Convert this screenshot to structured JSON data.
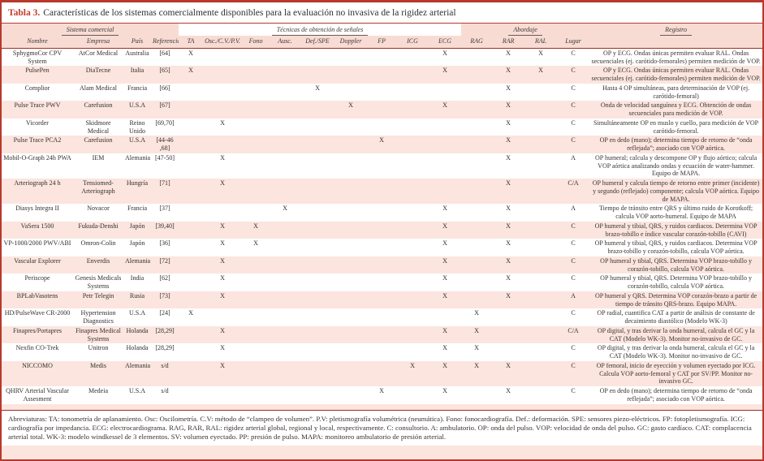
{
  "title": {
    "label": "Tabla 3.",
    "text": "Características de los sistemas comercialmente disponibles para la evaluación no invasiva de la rigidez arterial"
  },
  "table": {
    "groups": [
      {
        "label": "Sistema comercial",
        "cols": 4,
        "highlight": false
      },
      {
        "label": "Técnicas de obtención de señales",
        "cols": 9,
        "highlight": true
      },
      {
        "label": "Abordaje",
        "cols": 4,
        "highlight": false
      },
      {
        "label": "Registro",
        "cols": 1,
        "highlight": false
      }
    ],
    "columns": [
      "Nombre",
      "Empresa",
      "País",
      "Referencia",
      "TA",
      "Osc./C.V./P.V.",
      "Fono",
      "Ausc.",
      "Def./SPE",
      "Doppler",
      "FP",
      "ICG",
      "ECG",
      "RAG",
      "RAR",
      "RAL",
      "Lugar"
    ],
    "mark_keys": [
      "TA",
      "OSC",
      "FONO",
      "AUSC",
      "DEF",
      "DOP",
      "FP",
      "ICG",
      "ECG",
      "RAG",
      "RAR",
      "RAL"
    ],
    "rows": [
      {
        "nombre": "SphygmoCor CPV System",
        "empresa": "AtCor Medical",
        "pais": "Australia",
        "ref": "[64]",
        "marks": [
          "TA",
          "ECG",
          "RAR",
          "RAL"
        ],
        "lugar": "C",
        "registro": "OP y ECG. Ondas únicas permiten evaluar RAL. Ondas secuenciales (ej. carótido-femorales) permiten medición de VOP."
      },
      {
        "nombre": "PulsePen",
        "empresa": "DiaTecne",
        "pais": "Italia",
        "ref": "[65]",
        "marks": [
          "TA",
          "ECG",
          "RAR",
          "RAL"
        ],
        "lugar": "C",
        "registro": "OP y ECG. Ondas únicas permiten evaluar RAL. Ondas secuenciales (ej. carótido-femorales) permiten medición de VOP."
      },
      {
        "nombre": "Complior",
        "empresa": "Alam Medical",
        "pais": "Francia",
        "ref": "[66]",
        "marks": [
          "DEF",
          "RAR"
        ],
        "lugar": "C",
        "registro": "Hasta 4 OP simultáneas, para determinación de VOP (ej. carótido-femoral)"
      },
      {
        "nombre": "Pulse Trace PWV",
        "empresa": "Carefusion",
        "pais": "U.S.A",
        "ref": "[67]",
        "marks": [
          "DOP",
          "ECG",
          "RAR"
        ],
        "lugar": "C",
        "registro": "Onda de velocidad sanguínea y ECG. Obtención de ondas secuenciales para medición de VOP."
      },
      {
        "nombre": "Vicorder",
        "empresa": "Skidmore Medical",
        "pais": "Reino Unido",
        "ref": "[69,70]",
        "marks": [
          "OSC",
          "RAR"
        ],
        "lugar": "C",
        "registro": "Simultáneamente OP en muslo y cuello, para medición de VOP carótido-femoral."
      },
      {
        "nombre": "Pulse Trace PCA2",
        "empresa": "Carefusion",
        "pais": "U.S.A",
        "ref": "[44-46 ,68]",
        "marks": [
          "FP",
          "RAR"
        ],
        "lugar": "C",
        "registro": "OP en dedo (mano); determina tiempo de retorno de “onda reflejada”; asociado con VOP aórtica."
      },
      {
        "nombre": "Mobil-O-Graph 24h PWA",
        "empresa": "IEM",
        "pais": "Alemania",
        "ref": "[47-50]",
        "marks": [
          "OSC",
          "RAR"
        ],
        "lugar": "A",
        "registro": "OP humeral; calcula y descompone OP y flujo aórtico; calcula VOP aórtica analizando ondas y ecuación de water-hammer. Equipo de MAPA."
      },
      {
        "nombre": "Arteriograph 24 h",
        "empresa": "Tensiomed-Arteriograph",
        "pais": "Hungría",
        "ref": "[71]",
        "marks": [
          "OSC",
          "RAR"
        ],
        "lugar": "C/A",
        "registro": "OP humeral y calcula tiempo de retorno entre primer (incidente) y segundo (reflejado) componente; calcula VOP aórtica. Equipo de MAPA."
      },
      {
        "nombre": "Diasys Integra II",
        "empresa": "Novacor",
        "pais": "Francia",
        "ref": "[37]",
        "marks": [
          "AUSC",
          "ECG",
          "RAR"
        ],
        "lugar": "A",
        "registro": "Tiempo de tránsito entre QRS y último ruido de Korotkoff; calcula VOP aorto-humeral. Equipo de MAPA"
      },
      {
        "nombre": "VaSera 1500",
        "empresa": "Fukuda-Denshi",
        "pais": "Japón",
        "ref": "[39,40]",
        "marks": [
          "OSC",
          "FONO",
          "ECG",
          "RAR"
        ],
        "lugar": "C",
        "registro": "OP humeral y tibial, QRS, y ruidos cardiacos. Determina VOP brazo-tobillo e índice vascular corazón-tobillo (CAVI)"
      },
      {
        "nombre": "VP-1000/2000 PWV/ABI",
        "empresa": "Omron-Colin",
        "pais": "Japón",
        "ref": "[36]",
        "marks": [
          "OSC",
          "FONO",
          "ECG",
          "RAR"
        ],
        "lugar": "C",
        "registro": "OP humeral y tibial, QRS, y ruidos cardiacos. Determina VOP brazo-tobillo y corazón-tobillo, calcula VOP aórtica."
      },
      {
        "nombre": "Vascular Explorer",
        "empresa": "Enverdis",
        "pais": "Alemania",
        "ref": "[72]",
        "marks": [
          "OSC",
          "ECG",
          "RAR"
        ],
        "lugar": "C",
        "registro": "OP humeral y tibial, QRS. Determina VOP brazo-tobillo y corazón-tobillo, calcula VOP aórtica."
      },
      {
        "nombre": "Periscope",
        "empresa": "Genesis Medicals Systems",
        "pais": "India",
        "ref": "[62]",
        "marks": [
          "OSC",
          "ECG",
          "RAR"
        ],
        "lugar": "C",
        "registro": "OP humeral y tibial, QRS. Determina VOP brazo-tobillo y corazón-tobillo, calcula VOP aórtica."
      },
      {
        "nombre": "BPLabVasotens",
        "empresa": "Petr Telegin",
        "pais": "Rusia",
        "ref": "[73]",
        "marks": [
          "OSC",
          "ECG",
          "RAR"
        ],
        "lugar": "A",
        "registro": "OP humeral y QRS. Determina VOP corazón-brazo a partir de tiempo de tránsito QRS-brazo. Equipo MAPA."
      },
      {
        "nombre": "HD/PulseWave CR-2000",
        "empresa": "Hypertension Diagnostics",
        "pais": "U.S.A",
        "ref": "[24]",
        "marks": [
          "TA",
          "RAG"
        ],
        "lugar": "C",
        "registro": "OP radial, cuantifica CAT a partir de análisis de constante de decaimiento diastólico (Modelo WK-3)"
      },
      {
        "nombre": "Finapres/Portapres",
        "empresa": "Finapres Medical Systems",
        "pais": "Holanda",
        "ref": "[28,29]",
        "marks": [
          "OSC",
          "ECG",
          "RAG"
        ],
        "lugar": "C/A",
        "registro": "OP digital, y tras derivar la onda humeral, calcula el GC y la CAT (Modelo WK-3). Monitor no-invasivo de GC."
      },
      {
        "nombre": "Nexfin CO-Trek",
        "empresa": "Unitron",
        "pais": "Holanda",
        "ref": "[28,29]",
        "marks": [
          "OSC",
          "ECG",
          "RAG"
        ],
        "lugar": "C",
        "registro": "OP digital, y tras derivar la onda humeral, calcula el GC y la CAT (Modelo WK-3). Monitor no-invasivo de GC."
      },
      {
        "nombre": "NICCOMO",
        "empresa": "Medis",
        "pais": "Alemania",
        "ref": "s/d",
        "marks": [
          "OSC",
          "ICG",
          "ECG",
          "RAG",
          "RAR"
        ],
        "lugar": "C",
        "registro": "OP femoral, inicio de eyección y volumen eyectado por ICG. Calcula VOP aorto-femoral y CAT por SV/PP. Monitor no-invasivo GC."
      },
      {
        "nombre": "QHRV Arterial Vascular Assesment",
        "empresa": "Medeia",
        "pais": "U.S.A",
        "ref": "s/d",
        "marks": [
          "FP",
          "ECG",
          "RAR"
        ],
        "lugar": "C",
        "registro": "OP en dedo (mano); determina tiempo de retorno de “onda reflejada”; asociado con VOP aórtica."
      }
    ]
  },
  "footnote": "Abreviaturas: TA: tonometría de aplanamiento. Osc: Oscilometría. C.V: método de “clampeo de volumen”. P.V: pletismografía volumétrica (neumática). Fono: fonocardiografía. Def.: deformación. SPE: sensores piezo-eléctricos. FP: fotopletismografía. ICG: cardiografía por impedancia. ECG: electrocardiograma. RAG, RAR, RAL: rigidez arterial global, regional y local, respectivamente. C: consultorio. A: ambulatorio. OP: onda del pulso. VOP: velocidad de onda del pulso. GC: gasto cardíaco. CAT: complacencia arterial total. WK-3: modelo windkessel de 3 elementos. SV: volumen eyectado. PP: presión de pulso. MAPA: monitoreo ambulatorio de presión arterial.",
  "colors": {
    "border_red": "#b6392c",
    "title_red": "#c43a2a",
    "stripe_pink": "#fbe5de",
    "header_pink": "#f8dcd4",
    "rule_dark_red": "#9c3024"
  }
}
